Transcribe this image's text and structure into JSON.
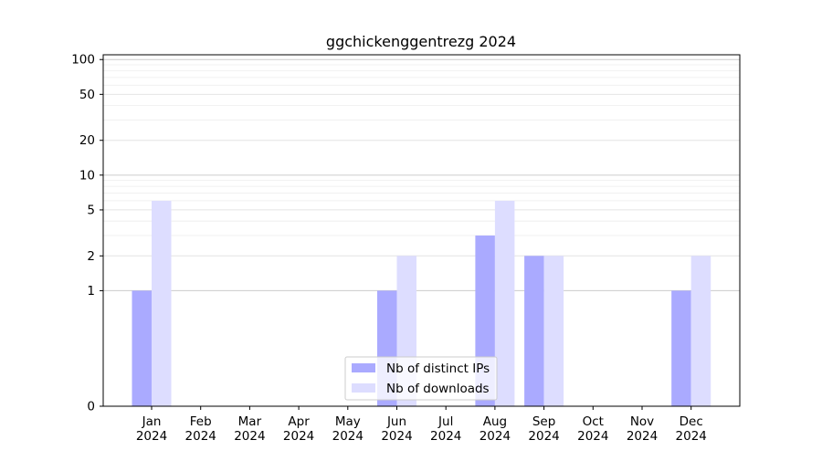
{
  "chart_data": {
    "type": "bar",
    "title": "ggchickenggentrezg 2024",
    "xlabel": "",
    "ylabel": "",
    "y_scale": "symlog",
    "y_ticks": [
      0,
      1,
      2,
      5,
      10,
      20,
      50,
      100
    ],
    "y_tick_labels": [
      "0",
      "1",
      "2",
      "5",
      "10",
      "20",
      "50",
      "100"
    ],
    "ylim": [
      0,
      110
    ],
    "categories": [
      {
        "month": "Jan",
        "year": "2024"
      },
      {
        "month": "Feb",
        "year": "2024"
      },
      {
        "month": "Mar",
        "year": "2024"
      },
      {
        "month": "Apr",
        "year": "2024"
      },
      {
        "month": "May",
        "year": "2024"
      },
      {
        "month": "Jun",
        "year": "2024"
      },
      {
        "month": "Jul",
        "year": "2024"
      },
      {
        "month": "Aug",
        "year": "2024"
      },
      {
        "month": "Sep",
        "year": "2024"
      },
      {
        "month": "Oct",
        "year": "2024"
      },
      {
        "month": "Nov",
        "year": "2024"
      },
      {
        "month": "Dec",
        "year": "2024"
      }
    ],
    "series": [
      {
        "name": "Nb of distinct IPs",
        "color": "#aaaaff",
        "values": [
          1,
          0,
          0,
          0,
          0,
          1,
          0,
          3,
          2,
          0,
          0,
          1
        ]
      },
      {
        "name": "Nb of downloads",
        "color": "#ddddff",
        "values": [
          6,
          0,
          0,
          0,
          0,
          2,
          0,
          6,
          2,
          0,
          0,
          2
        ]
      }
    ],
    "grid": true,
    "legend_position": "bottom-center"
  }
}
